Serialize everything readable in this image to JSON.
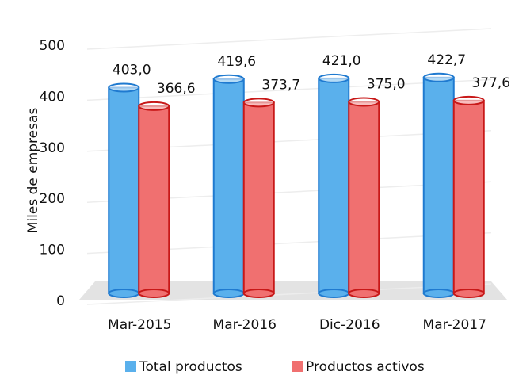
{
  "chart_data": {
    "type": "bar",
    "y_label": "Miles de empresas",
    "categories": [
      "Mar-2015",
      "Mar-2016",
      "Dic-2016",
      "Mar-2017"
    ],
    "series": [
      {
        "name": "Total productos",
        "color": "#5ab0ec",
        "values": [
          403.0,
          419.6,
          421.0,
          422.7
        ],
        "value_labels": [
          "403,0",
          "419,6",
          "421,0",
          "422,7"
        ]
      },
      {
        "name": "Productos activos",
        "color": "#f07070",
        "values": [
          366.6,
          373.7,
          375.0,
          377.6
        ],
        "value_labels": [
          "366,6",
          "373,7",
          "375,0",
          "377,6"
        ]
      }
    ],
    "ylim": [
      0,
      500
    ],
    "yticks": [
      0,
      100,
      200,
      300,
      400,
      500
    ],
    "grid": true,
    "legend": "bottom"
  }
}
